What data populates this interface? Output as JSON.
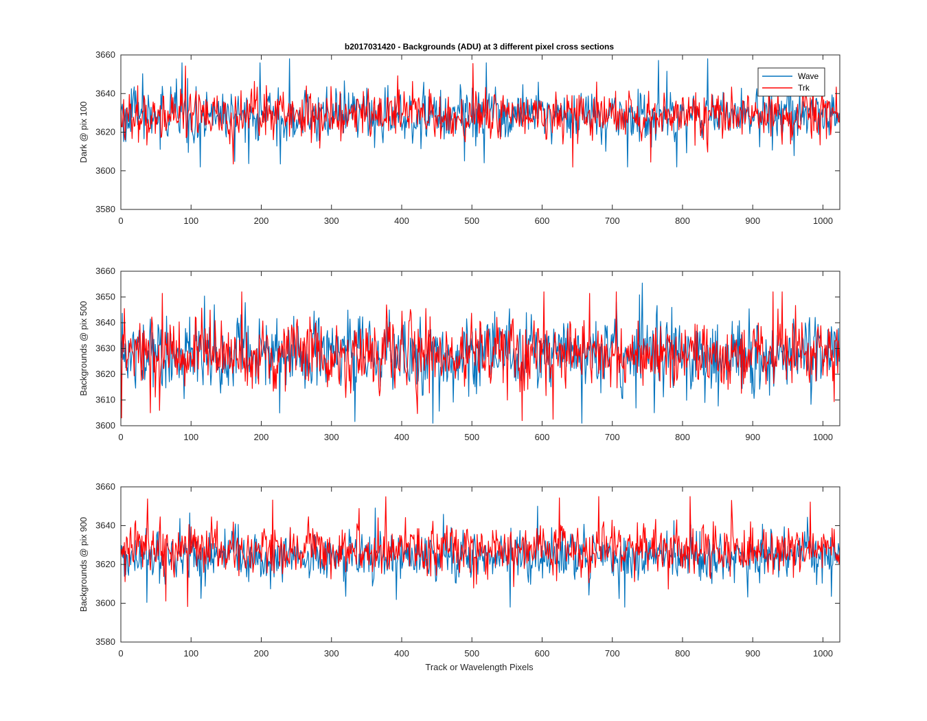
{
  "figure": {
    "title": "b2017031420 - Backgrounds (ADU) at 3 different pixel cross sections",
    "xlabel": "Track or Wavelength Pixels"
  },
  "colors": {
    "wave": "#0072BD",
    "trk": "#FF0000",
    "axes": "#262626"
  },
  "chart_data": [
    {
      "type": "line",
      "ylabel": "Dark @ pix 100",
      "xlim": [
        0,
        1024
      ],
      "ylim": [
        3580,
        3660
      ],
      "xticks": [
        0,
        100,
        200,
        300,
        400,
        500,
        600,
        700,
        800,
        900,
        1000
      ],
      "yticks": [
        3580,
        3600,
        3620,
        3640,
        3660
      ],
      "legend": {
        "position": "top-right",
        "entries": [
          "Wave",
          "Trk"
        ]
      },
      "series": [
        {
          "name": "Wave",
          "points": 1024,
          "mean": 3629,
          "std": 7.5,
          "min": 3602,
          "max": 3658
        },
        {
          "name": "Trk",
          "points": 1024,
          "mean": 3629,
          "std": 7.0,
          "min": 3594,
          "max": 3656
        }
      ]
    },
    {
      "type": "line",
      "ylabel": "Backgrounds @ pix 500",
      "xlim": [
        0,
        1024
      ],
      "ylim": [
        3600,
        3660
      ],
      "xticks": [
        0,
        100,
        200,
        300,
        400,
        500,
        600,
        700,
        800,
        900,
        1000
      ],
      "yticks": [
        3600,
        3610,
        3620,
        3630,
        3640,
        3650,
        3660
      ],
      "series": [
        {
          "name": "Wave",
          "points": 1024,
          "mean": 3628,
          "std": 8.0,
          "min": 3601,
          "max": 3659
        },
        {
          "name": "Trk",
          "points": 1024,
          "mean": 3628,
          "std": 7.5,
          "min": 3602,
          "max": 3652
        }
      ]
    },
    {
      "type": "line",
      "ylabel": "Backgrounds @ pix 900",
      "xlim": [
        0,
        1024
      ],
      "ylim": [
        3580,
        3660
      ],
      "xticks": [
        0,
        100,
        200,
        300,
        400,
        500,
        600,
        700,
        800,
        900,
        1000
      ],
      "yticks": [
        3580,
        3600,
        3620,
        3640,
        3660
      ],
      "series": [
        {
          "name": "Wave",
          "points": 1024,
          "mean": 3624,
          "std": 7.0,
          "min": 3598,
          "max": 3650
        },
        {
          "name": "Trk",
          "points": 1024,
          "mean": 3628,
          "std": 7.5,
          "min": 3596,
          "max": 3655
        }
      ]
    }
  ]
}
